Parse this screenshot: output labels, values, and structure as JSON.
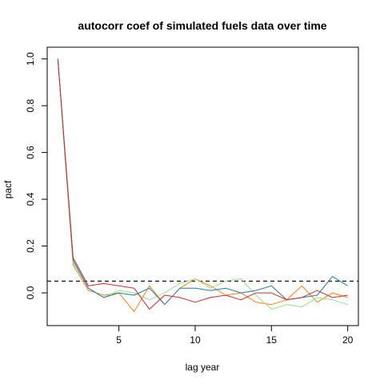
{
  "chart_data": {
    "type": "line",
    "title": "autocorr coef of simulated fuels data over time",
    "xlabel": "lag year",
    "ylabel": "pacf",
    "xlim": [
      0.3,
      20.7
    ],
    "ylim": [
      -0.14,
      1.05
    ],
    "x_ticks": [
      5,
      10,
      15,
      20
    ],
    "y_ticks": [
      0.0,
      0.2,
      0.4,
      0.6,
      0.8,
      1.0
    ],
    "y_tick_labels": [
      "0.0",
      "0.2",
      "0.4",
      "0.6",
      "0.8",
      "1.0"
    ],
    "grid": false,
    "reference_line": {
      "y": 0.05,
      "style": "dashed",
      "color": "#000000"
    },
    "x": [
      1,
      2,
      3,
      4,
      5,
      6,
      7,
      8,
      9,
      10,
      11,
      12,
      13,
      14,
      15,
      16,
      17,
      18,
      19,
      20
    ],
    "series": [
      {
        "color": "#ff7f0e",
        "values": [
          1.0,
          0.12,
          0.01,
          -0.01,
          0.0,
          -0.08,
          0.03,
          -0.05,
          0.02,
          0.06,
          0.03,
          -0.01,
          0.0,
          -0.04,
          -0.05,
          -0.03,
          0.03,
          -0.04,
          0.0,
          -0.02
        ]
      },
      {
        "color": "#98df8a",
        "values": [
          1.0,
          0.13,
          0.02,
          -0.02,
          0.01,
          0.0,
          -0.03,
          0.0,
          0.04,
          0.06,
          0.02,
          0.05,
          0.06,
          -0.01,
          -0.07,
          -0.05,
          -0.06,
          -0.02,
          -0.03,
          -0.05
        ]
      },
      {
        "color": "#1f77b4",
        "values": [
          1.0,
          0.14,
          0.02,
          -0.02,
          0.0,
          -0.01,
          0.02,
          -0.05,
          0.02,
          0.02,
          0.01,
          0.02,
          0.0,
          0.01,
          0.03,
          -0.03,
          -0.02,
          -0.01,
          0.07,
          0.03
        ]
      },
      {
        "color": "#d62728",
        "values": [
          1.0,
          0.15,
          0.03,
          0.04,
          0.03,
          0.02,
          -0.07,
          -0.01,
          -0.02,
          -0.04,
          -0.02,
          -0.01,
          -0.03,
          0.0,
          0.0,
          -0.03,
          -0.02,
          0.01,
          -0.02,
          -0.01
        ]
      }
    ]
  }
}
